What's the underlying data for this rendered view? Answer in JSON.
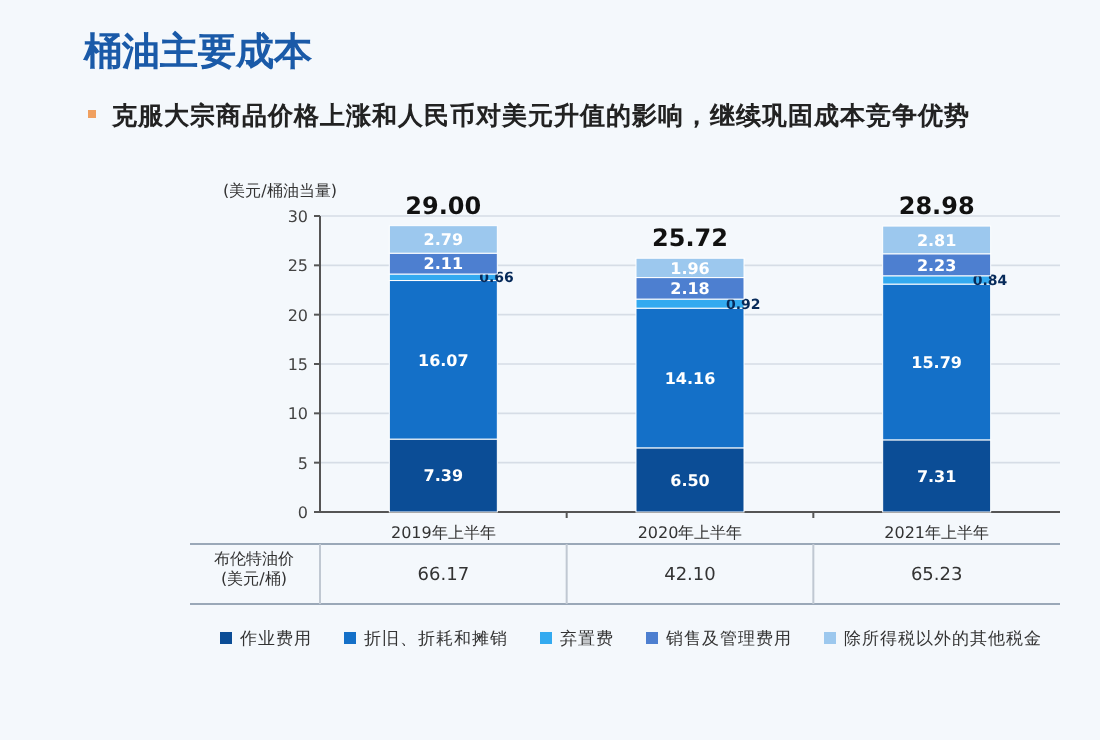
{
  "chart_data": {
    "type": "bar",
    "stacked": true,
    "title": "桶油主要成本",
    "subtitle": "克服大宗商品价格上涨和人民币对美元升值的影响，继续巩固成本竞争优势",
    "ylabel": "(美元/桶油当量)",
    "categories": [
      "2019年上半年",
      "2020年上半年",
      "2021年上半年"
    ],
    "series": [
      {
        "name": "作业费用",
        "color": "#0b4d96",
        "values": [
          7.39,
          6.5,
          7.31
        ],
        "value_labels": [
          "7.39",
          "6.50",
          "7.31"
        ]
      },
      {
        "name": "折旧、折耗和摊销",
        "color": "#1470c8",
        "values": [
          16.07,
          14.16,
          15.79
        ],
        "value_labels": [
          "16.07",
          "14.16",
          "15.79"
        ]
      },
      {
        "name": "弃置费",
        "color": "#33aaf0",
        "values": [
          0.66,
          0.92,
          0.84
        ],
        "value_labels": [
          "0.66",
          "0.92",
          "0.84"
        ]
      },
      {
        "name": "销售及管理费用",
        "color": "#4d7fd0",
        "values": [
          2.11,
          2.18,
          2.23
        ],
        "value_labels": [
          "2.11",
          "2.18",
          "2.23"
        ]
      },
      {
        "name": "除所得税以外的其他税金",
        "color": "#9cc8ee",
        "values": [
          2.79,
          1.96,
          2.81
        ],
        "value_labels": [
          "2.79",
          "1.96",
          "2.81"
        ]
      }
    ],
    "totals": [
      "29.00",
      "25.72",
      "28.98"
    ],
    "ylim": [
      0,
      30
    ],
    "yticks": [
      0,
      5,
      10,
      15,
      20,
      25,
      30
    ],
    "grid": "y",
    "legend": "bottom",
    "annotations": [
      "布伦特油价\n(美元/桶)",
      "66.17",
      "42.10",
      "65.23"
    ]
  }
}
